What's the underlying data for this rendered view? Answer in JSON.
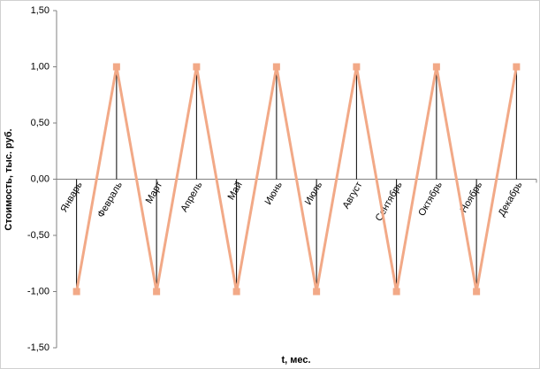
{
  "chart_data": {
    "type": "line",
    "y_label": "Стоимость, тыс. руб.",
    "x_label": "t, мес.",
    "categories": [
      "Январь",
      "Февраль",
      "Март",
      "Апрель",
      "Май",
      "Июнь",
      "Июль",
      "Август",
      "Сентябрь",
      "Октябрь",
      "Ноябрь",
      "Декабрь"
    ],
    "series": [
      {
        "color": "#f2a987",
        "values": [
          -1,
          1,
          -1,
          1,
          -1,
          1,
          -1,
          1,
          -1,
          1,
          -1,
          1
        ]
      }
    ],
    "drop_lines": true,
    "grid": false,
    "ylim": [
      -1.5,
      1.5
    ],
    "yticks": [
      {
        "value": -1.5,
        "label": "-1,50"
      },
      {
        "value": -1,
        "label": "-1,00"
      },
      {
        "value": -0.5,
        "label": "-0,50"
      },
      {
        "value": 0,
        "label": "0,00"
      },
      {
        "value": 0.5,
        "label": "0,50"
      },
      {
        "value": 1,
        "label": "1,00"
      },
      {
        "value": 1.5,
        "label": "1,50"
      }
    ]
  }
}
